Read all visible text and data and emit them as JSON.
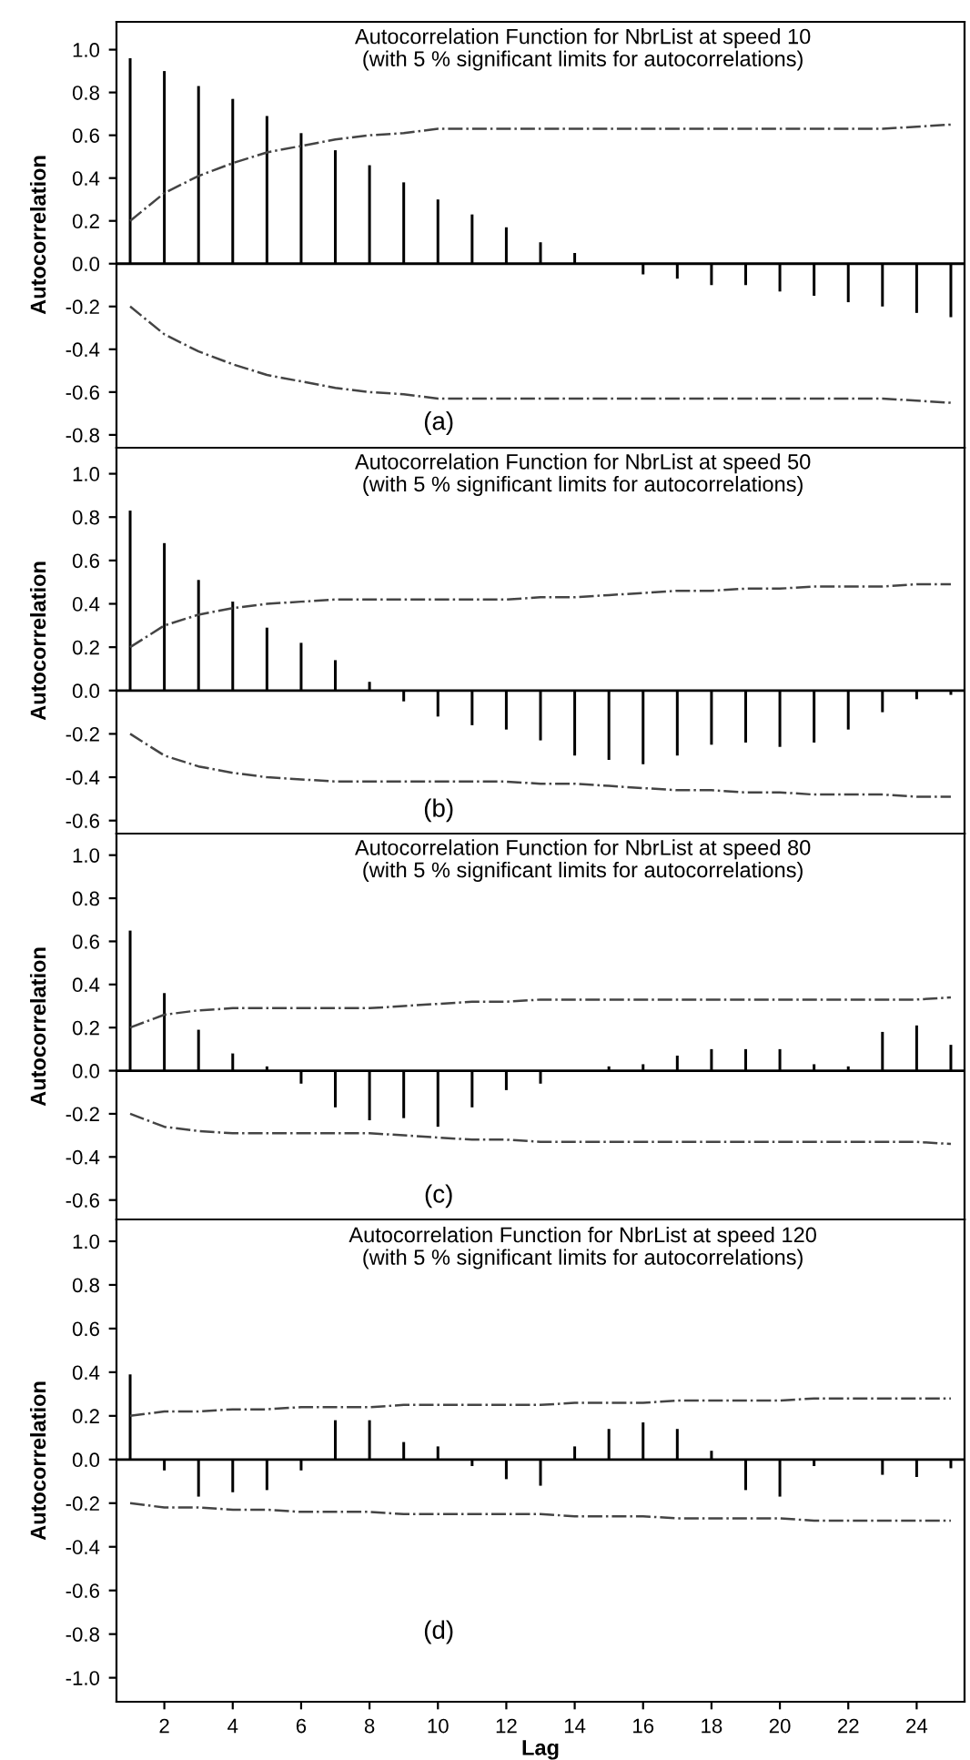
{
  "chart_data": [
    {
      "type": "bar",
      "title": "Autocorrelation Function for NbrList at speed 10",
      "subtitle": "(with 5 % significant limits for autocorrelations)",
      "ylabel": "Autocorrelation",
      "annotations": [
        "(a)"
      ],
      "x": [
        1,
        2,
        3,
        4,
        5,
        6,
        7,
        8,
        9,
        10,
        11,
        12,
        13,
        14,
        15,
        16,
        17,
        18,
        19,
        20,
        21,
        22,
        23,
        24,
        25
      ],
      "series": [
        {
          "color": "#000000",
          "values": [
            0.96,
            0.9,
            0.83,
            0.77,
            0.69,
            0.61,
            0.53,
            0.46,
            0.38,
            0.3,
            0.23,
            0.17,
            0.1,
            0.05,
            0.0,
            -0.05,
            -0.07,
            -0.1,
            -0.1,
            -0.13,
            -0.15,
            -0.18,
            -0.2,
            -0.23,
            -0.25
          ]
        },
        {
          "type": "line",
          "color": "#444444",
          "line_style": "dashdot",
          "values": [
            0.2,
            0.33,
            0.41,
            0.47,
            0.52,
            0.55,
            0.58,
            0.6,
            0.61,
            0.63,
            0.63,
            0.63,
            0.63,
            0.63,
            0.63,
            0.63,
            0.63,
            0.63,
            0.63,
            0.63,
            0.63,
            0.63,
            0.63,
            0.64,
            0.65
          ]
        },
        {
          "type": "line",
          "color": "#444444",
          "line_style": "dashdot",
          "values": [
            -0.2,
            -0.33,
            -0.41,
            -0.47,
            -0.52,
            -0.55,
            -0.58,
            -0.6,
            -0.61,
            -0.63,
            -0.63,
            -0.63,
            -0.63,
            -0.63,
            -0.63,
            -0.63,
            -0.63,
            -0.63,
            -0.63,
            -0.63,
            -0.63,
            -0.63,
            -0.63,
            -0.64,
            -0.65
          ]
        }
      ],
      "ref_lines": [
        {
          "axis": "y",
          "value": 0,
          "color": "#000000"
        }
      ],
      "xlim": [
        0.6,
        25.4
      ],
      "xticks": [
        2,
        4,
        6,
        8,
        10,
        12,
        14,
        16,
        18,
        20,
        22,
        24
      ],
      "ylim": [
        -0.86,
        1.13
      ],
      "yticks": [
        -0.8,
        -0.6,
        -0.4,
        -0.2,
        {
          "value": 0,
          "label": "0.0"
        },
        0.2,
        0.4,
        0.6,
        0.8,
        {
          "value": 1,
          "label": "1.0"
        }
      ],
      "tick_labels": "y",
      "grid": false,
      "legend": false
    },
    {
      "type": "bar",
      "title": "Autocorrelation Function for NbrList at speed 50",
      "subtitle": "(with 5 % significant limits for autocorrelations)",
      "ylabel": "Autocorrelation",
      "annotations": [
        "(b)"
      ],
      "x": [
        1,
        2,
        3,
        4,
        5,
        6,
        7,
        8,
        9,
        10,
        11,
        12,
        13,
        14,
        15,
        16,
        17,
        18,
        19,
        20,
        21,
        22,
        23,
        24,
        25
      ],
      "series": [
        {
          "color": "#000000",
          "values": [
            0.83,
            0.68,
            0.51,
            0.41,
            0.29,
            0.22,
            0.14,
            0.04,
            -0.05,
            -0.12,
            -0.16,
            -0.18,
            -0.23,
            -0.3,
            -0.32,
            -0.34,
            -0.3,
            -0.25,
            -0.24,
            -0.26,
            -0.24,
            -0.18,
            -0.1,
            -0.04,
            -0.02
          ]
        },
        {
          "type": "line",
          "color": "#444444",
          "line_style": "dashdot",
          "values": [
            0.2,
            0.3,
            0.35,
            0.38,
            0.4,
            0.41,
            0.42,
            0.42,
            0.42,
            0.42,
            0.42,
            0.42,
            0.43,
            0.43,
            0.44,
            0.45,
            0.46,
            0.46,
            0.47,
            0.47,
            0.48,
            0.48,
            0.48,
            0.49,
            0.49
          ]
        },
        {
          "type": "line",
          "color": "#444444",
          "line_style": "dashdot",
          "values": [
            -0.2,
            -0.3,
            -0.35,
            -0.38,
            -0.4,
            -0.41,
            -0.42,
            -0.42,
            -0.42,
            -0.42,
            -0.42,
            -0.42,
            -0.43,
            -0.43,
            -0.44,
            -0.45,
            -0.46,
            -0.46,
            -0.47,
            -0.47,
            -0.48,
            -0.48,
            -0.48,
            -0.49,
            -0.49
          ]
        }
      ],
      "ref_lines": [
        {
          "axis": "y",
          "value": 0,
          "color": "#000000"
        }
      ],
      "xlim": [
        0.6,
        25.4
      ],
      "xticks": [
        2,
        4,
        6,
        8,
        10,
        12,
        14,
        16,
        18,
        20,
        22,
        24
      ],
      "ylim": [
        -0.66,
        1.12
      ],
      "yticks": [
        -0.6,
        -0.4,
        -0.2,
        {
          "value": 0,
          "label": "0.0"
        },
        0.2,
        0.4,
        0.6,
        0.8,
        {
          "value": 1,
          "label": "1.0"
        }
      ],
      "tick_labels": "y",
      "grid": false,
      "legend": false
    },
    {
      "type": "bar",
      "title": "Autocorrelation Function for NbrList at speed 80",
      "subtitle": "(with 5 % significant limits for autocorrelations)",
      "ylabel": "Autocorrelation",
      "annotations": [
        "(c)"
      ],
      "x": [
        1,
        2,
        3,
        4,
        5,
        6,
        7,
        8,
        9,
        10,
        11,
        12,
        13,
        14,
        15,
        16,
        17,
        18,
        19,
        20,
        21,
        22,
        23,
        24,
        25
      ],
      "series": [
        {
          "color": "#000000",
          "values": [
            0.65,
            0.36,
            0.19,
            0.08,
            0.02,
            -0.06,
            -0.17,
            -0.23,
            -0.22,
            -0.26,
            -0.17,
            -0.09,
            -0.06,
            0.0,
            0.02,
            0.03,
            0.07,
            0.1,
            0.1,
            0.1,
            0.03,
            0.02,
            0.18,
            0.21,
            0.12
          ]
        },
        {
          "type": "line",
          "color": "#444444",
          "line_style": "dashdot",
          "values": [
            0.2,
            0.26,
            0.28,
            0.29,
            0.29,
            0.29,
            0.29,
            0.29,
            0.3,
            0.31,
            0.32,
            0.32,
            0.33,
            0.33,
            0.33,
            0.33,
            0.33,
            0.33,
            0.33,
            0.33,
            0.33,
            0.33,
            0.33,
            0.33,
            0.34
          ]
        },
        {
          "type": "line",
          "color": "#444444",
          "line_style": "dashdot",
          "values": [
            -0.2,
            -0.26,
            -0.28,
            -0.29,
            -0.29,
            -0.29,
            -0.29,
            -0.29,
            -0.3,
            -0.31,
            -0.32,
            -0.32,
            -0.33,
            -0.33,
            -0.33,
            -0.33,
            -0.33,
            -0.33,
            -0.33,
            -0.33,
            -0.33,
            -0.33,
            -0.33,
            -0.33,
            -0.34
          ]
        }
      ],
      "ref_lines": [
        {
          "axis": "y",
          "value": 0,
          "color": "#000000"
        }
      ],
      "xlim": [
        0.6,
        25.4
      ],
      "xticks": [
        2,
        4,
        6,
        8,
        10,
        12,
        14,
        16,
        18,
        20,
        22,
        24
      ],
      "ylim": [
        -0.69,
        1.1
      ],
      "yticks": [
        -0.6,
        -0.4,
        -0.2,
        {
          "value": 0,
          "label": "0.0"
        },
        0.2,
        0.4,
        0.6,
        0.8,
        {
          "value": 1,
          "label": "1.0"
        }
      ],
      "tick_labels": "y",
      "grid": false,
      "legend": false
    },
    {
      "type": "bar",
      "title": "Autocorrelation Function for NbrList at speed 120",
      "subtitle": "(with 5 % significant limits for autocorrelations)",
      "ylabel": "Autocorrelation",
      "xlabel": "Lag",
      "annotations": [
        "(d)"
      ],
      "x": [
        1,
        2,
        3,
        4,
        5,
        6,
        7,
        8,
        9,
        10,
        11,
        12,
        13,
        14,
        15,
        16,
        17,
        18,
        19,
        20,
        21,
        22,
        23,
        24,
        25
      ],
      "series": [
        {
          "color": "#000000",
          "values": [
            0.39,
            -0.05,
            -0.17,
            -0.15,
            -0.14,
            -0.05,
            0.18,
            0.18,
            0.08,
            0.06,
            -0.03,
            -0.09,
            -0.12,
            0.06,
            0.14,
            0.17,
            0.14,
            0.04,
            -0.14,
            -0.17,
            -0.03,
            0.0,
            -0.07,
            -0.08,
            -0.04
          ]
        },
        {
          "type": "line",
          "color": "#444444",
          "line_style": "dashdot",
          "values": [
            0.2,
            0.22,
            0.22,
            0.23,
            0.23,
            0.24,
            0.24,
            0.24,
            0.25,
            0.25,
            0.25,
            0.25,
            0.25,
            0.26,
            0.26,
            0.26,
            0.27,
            0.27,
            0.27,
            0.27,
            0.28,
            0.28,
            0.28,
            0.28,
            0.28
          ]
        },
        {
          "type": "line",
          "color": "#444444",
          "line_style": "dashdot",
          "values": [
            -0.2,
            -0.22,
            -0.22,
            -0.23,
            -0.23,
            -0.24,
            -0.24,
            -0.24,
            -0.25,
            -0.25,
            -0.25,
            -0.25,
            -0.25,
            -0.26,
            -0.26,
            -0.26,
            -0.27,
            -0.27,
            -0.27,
            -0.27,
            -0.28,
            -0.28,
            -0.28,
            -0.28,
            -0.28
          ]
        }
      ],
      "ref_lines": [
        {
          "axis": "y",
          "value": 0,
          "color": "#000000"
        }
      ],
      "xlim": [
        0.6,
        25.4
      ],
      "xticks": [
        2,
        4,
        6,
        8,
        10,
        12,
        14,
        16,
        18,
        20,
        22,
        24
      ],
      "ylim": [
        -1.11,
        1.1
      ],
      "yticks": [
        {
          "value": -1,
          "label": "-1.0"
        },
        -0.8,
        -0.6,
        -0.4,
        -0.2,
        {
          "value": 0,
          "label": "0.0"
        },
        0.2,
        0.4,
        0.6,
        0.8,
        {
          "value": 1,
          "label": "1.0"
        }
      ],
      "grid": false,
      "legend": false
    }
  ]
}
